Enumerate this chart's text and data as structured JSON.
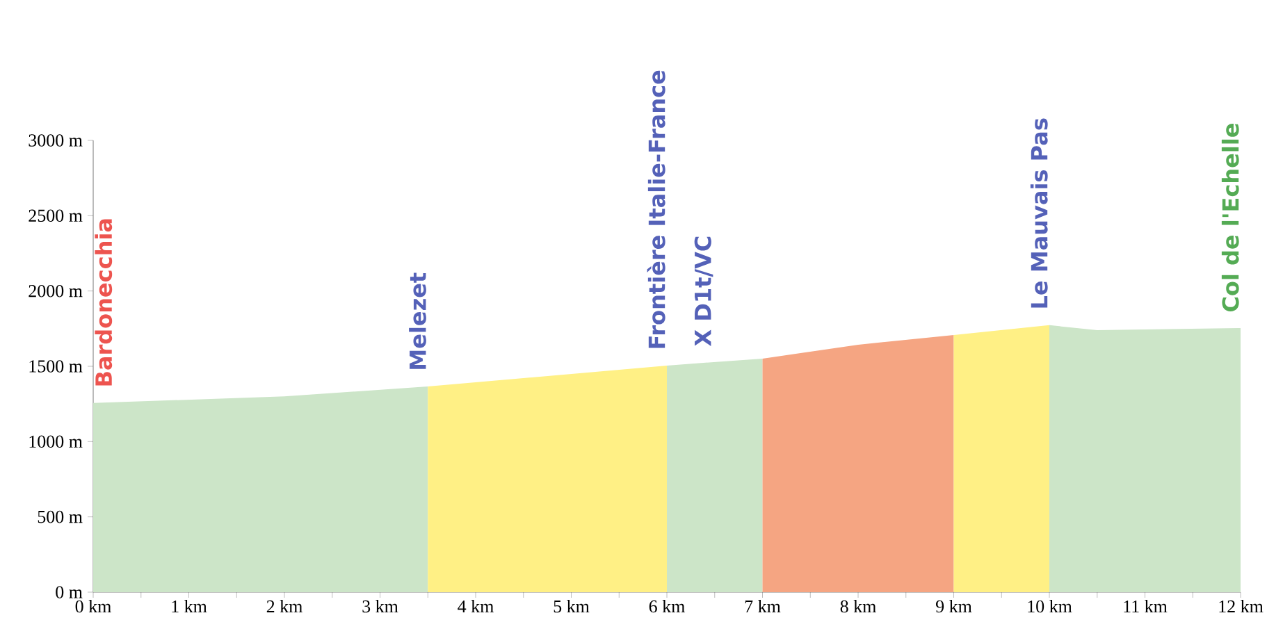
{
  "chart_data": {
    "type": "area",
    "series": [
      {
        "color": "#cce5c8",
        "x": [
          0,
          2,
          3.5
        ],
        "values": [
          1256,
          1300,
          1366
        ]
      },
      {
        "color": "#fff085",
        "x": [
          3.5,
          6
        ],
        "values": [
          1366,
          1505
        ]
      },
      {
        "color": "#cce5c8",
        "x": [
          6,
          7
        ],
        "values": [
          1505,
          1551
        ]
      },
      {
        "color": "#f5a582",
        "x": [
          7,
          8,
          9
        ],
        "values": [
          1551,
          1643,
          1708
        ]
      },
      {
        "color": "#fff085",
        "x": [
          9,
          10
        ],
        "values": [
          1708,
          1773
        ]
      },
      {
        "color": "#cce5c8",
        "x": [
          10,
          10.5,
          12
        ],
        "values": [
          1773,
          1740,
          1754
        ]
      }
    ],
    "xlim": [
      0,
      12
    ],
    "ylim": [
      0,
      3000
    ],
    "xticks": [
      {
        "value": 0,
        "label": "0 km"
      },
      {
        "value": 0.5,
        "label": null
      },
      {
        "value": 1,
        "label": "1 km"
      },
      {
        "value": 1.5,
        "label": null
      },
      {
        "value": 2,
        "label": "2 km"
      },
      {
        "value": 2.5,
        "label": null
      },
      {
        "value": 3,
        "label": "3 km"
      },
      {
        "value": 3.5,
        "label": null
      },
      {
        "value": 4,
        "label": "4 km"
      },
      {
        "value": 4.5,
        "label": null
      },
      {
        "value": 5,
        "label": "5 km"
      },
      {
        "value": 5.5,
        "label": null
      },
      {
        "value": 6,
        "label": "6 km"
      },
      {
        "value": 6.5,
        "label": null
      },
      {
        "value": 7,
        "label": "7 km"
      },
      {
        "value": 7.5,
        "label": null
      },
      {
        "value": 8,
        "label": "8 km"
      },
      {
        "value": 8.5,
        "label": null
      },
      {
        "value": 9,
        "label": "9 km"
      },
      {
        "value": 9.5,
        "label": null
      },
      {
        "value": 10,
        "label": "10 km"
      },
      {
        "value": 10.5,
        "label": null
      },
      {
        "value": 11,
        "label": "11 km"
      },
      {
        "value": 11.5,
        "label": null
      },
      {
        "value": 12,
        "label": "12 km"
      }
    ],
    "yticks": [
      {
        "value": 0,
        "label": "0 m"
      },
      {
        "value": 500,
        "label": "500 m"
      },
      {
        "value": 1000,
        "label": "1000 m"
      },
      {
        "value": 1500,
        "label": "1500 m"
      },
      {
        "value": 2000,
        "label": "2000 m"
      },
      {
        "value": 2500,
        "label": "2500 m"
      },
      {
        "value": 3000,
        "label": "3000 m"
      }
    ],
    "annotations": [
      {
        "text": "Bardonecchia",
        "x": 0,
        "y": 1256
      },
      {
        "text": "Melezet",
        "x": 3.5,
        "y": 1366
      },
      {
        "text": "Frontière Italie-France",
        "x": 6,
        "y": 1505
      },
      {
        "text": "X D1t/VC",
        "x": 6.5,
        "y": 1528
      },
      {
        "text": "Le Mauvais Pas",
        "x": 10,
        "y": 1773
      },
      {
        "text": "Col de l'Echelle",
        "x": 12,
        "y": 1754
      }
    ]
  }
}
